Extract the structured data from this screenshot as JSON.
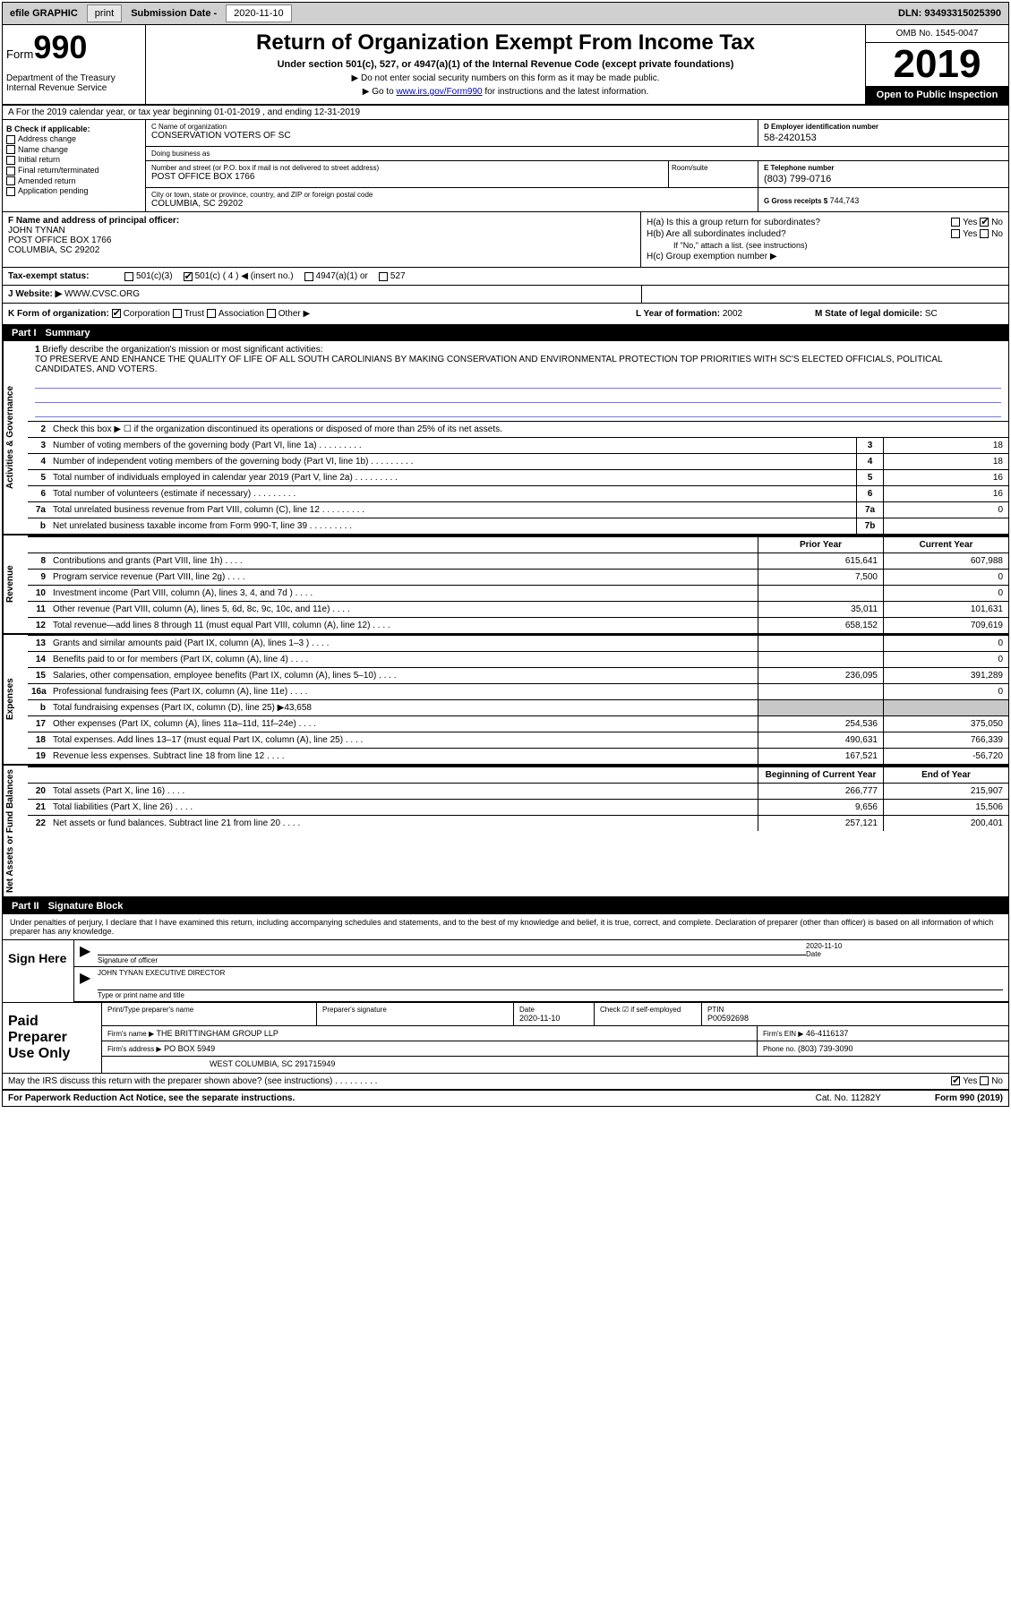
{
  "topbar": {
    "efile": "efile GRAPHIC",
    "print": "print",
    "sub_label": "Submission Date -",
    "sub_date": "2020-11-10",
    "dln_label": "DLN:",
    "dln": "93493315025390"
  },
  "header": {
    "form_label": "Form",
    "form_num": "990",
    "dept": "Department of the Treasury\nInternal Revenue Service",
    "title": "Return of Organization Exempt From Income Tax",
    "subtitle": "Under section 501(c), 527, or 4947(a)(1) of the Internal Revenue Code (except private foundations)",
    "instr1": "▶ Do not enter social security numbers on this form as it may be made public.",
    "instr2_pre": "▶ Go to ",
    "instr2_link": "www.irs.gov/Form990",
    "instr2_post": " for instructions and the latest information.",
    "omb": "OMB No. 1545-0047",
    "year": "2019",
    "open_pub": "Open to Public Inspection"
  },
  "row_a": "A For the 2019 calendar year, or tax year beginning 01-01-2019    , and ending 12-31-2019",
  "col_b": {
    "label": "B Check if applicable:",
    "items": [
      "Address change",
      "Name change",
      "Initial return",
      "Final return/terminated",
      "Amended return",
      "Application pending"
    ]
  },
  "org": {
    "name_label": "C Name of organization",
    "name": "CONSERVATION VOTERS OF SC",
    "dba_label": "Doing business as",
    "dba": "",
    "addr_label": "Number and street (or P.O. box if mail is not delivered to street address)",
    "addr": "POST OFFICE BOX 1766",
    "suite_label": "Room/suite",
    "city_label": "City or town, state or province, country, and ZIP or foreign postal code",
    "city": "COLUMBIA, SC  29202",
    "ein_label": "D Employer identification number",
    "ein": "58-2420153",
    "tel_label": "E Telephone number",
    "tel": "(803) 799-0716",
    "gross_label": "G Gross receipts $",
    "gross": "744,743"
  },
  "officer": {
    "label": "F  Name and address of principal officer:",
    "name": "JOHN TYNAN",
    "addr1": "POST OFFICE BOX 1766",
    "addr2": "COLUMBIA, SC  29202"
  },
  "h": {
    "a_label": "H(a)  Is this a group return for subordinates?",
    "b_label": "H(b)  Are all subordinates included?",
    "b_note": "If \"No,\" attach a list. (see instructions)",
    "c_label": "H(c)  Group exemption number ▶",
    "yes": "Yes",
    "no": "No"
  },
  "tax_status": {
    "label": "Tax-exempt status:",
    "o1": "501(c)(3)",
    "o2": "501(c) ( 4 ) ◀ (insert no.)",
    "o3": "4947(a)(1) or",
    "o4": "527"
  },
  "website": {
    "label": "J   Website: ▶",
    "val": "WWW.CVSC.ORG"
  },
  "row_k": {
    "label": "K Form of organization:",
    "corp": "Corporation",
    "trust": "Trust",
    "assoc": "Association",
    "other": "Other ▶",
    "l_label": "L Year of formation:",
    "l_val": "2002",
    "m_label": "M State of legal domicile:",
    "m_val": "SC"
  },
  "part1": {
    "num": "Part I",
    "title": "Summary"
  },
  "mission": {
    "ln": "1",
    "label": "Briefly describe the organization's mission or most significant activities:",
    "text": "TO PRESERVE AND ENHANCE THE QUALITY OF LIFE OF ALL SOUTH CAROLINIANS BY MAKING CONSERVATION AND ENVIRONMENTAL PROTECTION TOP PRIORITIES WITH SC'S ELECTED OFFICIALS, POLITICAL CANDIDATES, AND VOTERS."
  },
  "vert_labels": {
    "ag": "Activities & Governance",
    "rev": "Revenue",
    "exp": "Expenses",
    "na": "Net Assets or Fund Balances"
  },
  "lines_ag": [
    {
      "n": "2",
      "d": "Check this box ▶ ☐  if the organization discontinued its operations or disposed of more than 25% of its net assets."
    },
    {
      "n": "3",
      "d": "Number of voting members of the governing body (Part VI, line 1a)",
      "box": "3",
      "v": "18"
    },
    {
      "n": "4",
      "d": "Number of independent voting members of the governing body (Part VI, line 1b)",
      "box": "4",
      "v": "18"
    },
    {
      "n": "5",
      "d": "Total number of individuals employed in calendar year 2019 (Part V, line 2a)",
      "box": "5",
      "v": "16"
    },
    {
      "n": "6",
      "d": "Total number of volunteers (estimate if necessary)",
      "box": "6",
      "v": "16"
    },
    {
      "n": "7a",
      "d": "Total unrelated business revenue from Part VIII, column (C), line 12",
      "box": "7a",
      "v": "0"
    },
    {
      "n": "b",
      "d": "Net unrelated business taxable income from Form 990-T, line 39",
      "box": "7b",
      "v": ""
    }
  ],
  "yr_hdr": {
    "py": "Prior Year",
    "cy": "Current Year"
  },
  "lines_rev": [
    {
      "n": "8",
      "d": "Contributions and grants (Part VIII, line 1h)",
      "py": "615,641",
      "cy": "607,988"
    },
    {
      "n": "9",
      "d": "Program service revenue (Part VIII, line 2g)",
      "py": "7,500",
      "cy": "0"
    },
    {
      "n": "10",
      "d": "Investment income (Part VIII, column (A), lines 3, 4, and 7d )",
      "py": "",
      "cy": "0"
    },
    {
      "n": "11",
      "d": "Other revenue (Part VIII, column (A), lines 5, 6d, 8c, 9c, 10c, and 11e)",
      "py": "35,011",
      "cy": "101,631"
    },
    {
      "n": "12",
      "d": "Total revenue—add lines 8 through 11 (must equal Part VIII, column (A), line 12)",
      "py": "658,152",
      "cy": "709,619"
    }
  ],
  "lines_exp": [
    {
      "n": "13",
      "d": "Grants and similar amounts paid (Part IX, column (A), lines 1–3 )",
      "py": "",
      "cy": "0"
    },
    {
      "n": "14",
      "d": "Benefits paid to or for members (Part IX, column (A), line 4)",
      "py": "",
      "cy": "0"
    },
    {
      "n": "15",
      "d": "Salaries, other compensation, employee benefits (Part IX, column (A), lines 5–10)",
      "py": "236,095",
      "cy": "391,289"
    },
    {
      "n": "16a",
      "d": "Professional fundraising fees (Part IX, column (A), line 11e)",
      "py": "",
      "cy": "0"
    },
    {
      "n": "b",
      "d": "Total fundraising expenses (Part IX, column (D), line 25) ▶43,658",
      "gray": true
    },
    {
      "n": "17",
      "d": "Other expenses (Part IX, column (A), lines 11a–11d, 11f–24e)",
      "py": "254,536",
      "cy": "375,050"
    },
    {
      "n": "18",
      "d": "Total expenses. Add lines 13–17 (must equal Part IX, column (A), line 25)",
      "py": "490,631",
      "cy": "766,339"
    },
    {
      "n": "19",
      "d": "Revenue less expenses. Subtract line 18 from line 12",
      "py": "167,521",
      "cy": "-56,720"
    }
  ],
  "yr_hdr2": {
    "py": "Beginning of Current Year",
    "cy": "End of Year"
  },
  "lines_na": [
    {
      "n": "20",
      "d": "Total assets (Part X, line 16)",
      "py": "266,777",
      "cy": "215,907"
    },
    {
      "n": "21",
      "d": "Total liabilities (Part X, line 26)",
      "py": "9,656",
      "cy": "15,506"
    },
    {
      "n": "22",
      "d": "Net assets or fund balances. Subtract line 21 from line 20",
      "py": "257,121",
      "cy": "200,401"
    }
  ],
  "part2": {
    "num": "Part II",
    "title": "Signature Block"
  },
  "sig": {
    "decl": "Under penalties of perjury, I declare that I have examined this return, including accompanying schedules and statements, and to the best of my knowledge and belief, it is true, correct, and complete. Declaration of preparer (other than officer) is based on all information of which preparer has any knowledge.",
    "here": "Sign Here",
    "sig_label": "Signature of officer",
    "date_label": "Date",
    "date": "2020-11-10",
    "name": "JOHN TYNAN  EXECUTIVE DIRECTOR",
    "name_label": "Type or print name and title"
  },
  "prep": {
    "title": "Paid Preparer Use Only",
    "pname_label": "Print/Type preparer's name",
    "psig_label": "Preparer's signature",
    "pdate_label": "Date",
    "pdate": "2020-11-10",
    "check_label": "Check ☑ if self-employed",
    "ptin_label": "PTIN",
    "ptin": "P00592698",
    "firm_label": "Firm's name    ▶",
    "firm": "THE BRITTINGHAM GROUP LLP",
    "fein_label": "Firm's EIN ▶",
    "fein": "46-4116137",
    "faddr_label": "Firm's address ▶",
    "faddr1": "PO BOX 5949",
    "faddr2": "WEST COLUMBIA, SC  291715949",
    "phone_label": "Phone no.",
    "phone": "(803) 739-3090"
  },
  "discuss": {
    "q": "May the IRS discuss this return with the preparer shown above? (see instructions)",
    "yes": "Yes",
    "no": "No"
  },
  "footer": {
    "l": "For Paperwork Reduction Act Notice, see the separate instructions.",
    "m": "Cat. No. 11282Y",
    "r": "Form 990 (2019)"
  }
}
